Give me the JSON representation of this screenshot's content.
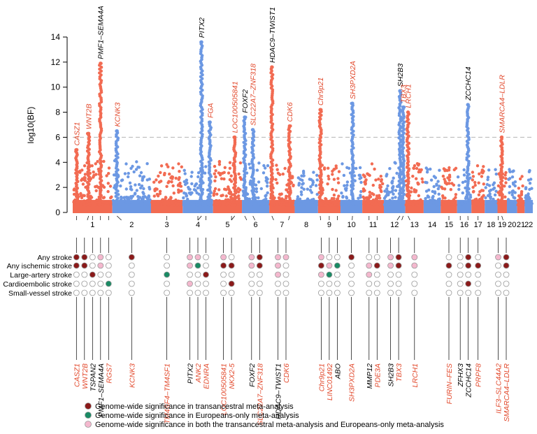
{
  "colors": {
    "odd_chr": "#F26B52",
    "even_chr": "#6C98E3",
    "threshold": "#BDBDBD",
    "novel_gene": "#E2492C",
    "known_gene": "#000000",
    "transancestral": "#8B1A1A",
    "europeans_only": "#1A8A64",
    "both": "#F4B8CE",
    "empty": "#FFFFFF"
  },
  "chart_data": {
    "type": "scatter",
    "subtype": "manhattan",
    "ylabel": "log10(BF)",
    "ylim": [
      0,
      14
    ],
    "yticks": [
      0,
      2,
      4,
      6,
      8,
      10,
      12,
      14
    ],
    "threshold": 6,
    "threshold_style": "dashed",
    "chromosomes": [
      "1",
      "2",
      "3",
      "4",
      "5",
      "6",
      "7",
      "8",
      "9",
      "10",
      "11",
      "12",
      "13",
      "14",
      "15",
      "16",
      "17",
      "18",
      "19",
      "20",
      "21",
      "22"
    ],
    "peaks": [
      {
        "chr": "1",
        "pos": 0.1,
        "top": 5.0,
        "label": "CASZ1",
        "novel": true
      },
      {
        "chr": "1",
        "pos": 0.4,
        "top": 6.3,
        "label": "WNT2B",
        "novel": true
      },
      {
        "chr": "1",
        "pos": 0.7,
        "top": 11.9,
        "label": "PMF1–SEMA4A",
        "novel": false
      },
      {
        "chr": "2",
        "pos": 0.12,
        "top": 6.5,
        "label": "KCNK3",
        "novel": true
      },
      {
        "chr": "4",
        "pos": 0.62,
        "top": 13.6,
        "label": "PITX2",
        "novel": false
      },
      {
        "chr": "4",
        "pos": 0.9,
        "top": 7.2,
        "label": "FGA",
        "novel": true
      },
      {
        "chr": "5",
        "pos": 0.75,
        "top": 6.0,
        "label": "LOC100505841",
        "novel": true
      },
      {
        "chr": "6",
        "pos": 0.1,
        "top": 7.6,
        "label": "FOXF2",
        "novel": false
      },
      {
        "chr": "6",
        "pos": 0.4,
        "top": 6.6,
        "label": "SLC22A7–ZNF318",
        "novel": true
      },
      {
        "chr": "7",
        "pos": 0.1,
        "top": 11.6,
        "label": "HDAC9–TWIST1",
        "novel": false
      },
      {
        "chr": "7",
        "pos": 0.8,
        "top": 6.9,
        "label": "CDK6",
        "novel": true
      },
      {
        "chr": "9",
        "pos": 0.1,
        "top": 8.2,
        "label": "Chr9p21",
        "novel": true
      },
      {
        "chr": "10",
        "pos": 0.55,
        "top": 8.7,
        "label": "SH3PXD2A",
        "novel": true
      },
      {
        "chr": "12",
        "pos": 0.75,
        "top": 9.7,
        "label": "SH2B3",
        "novel": false
      },
      {
        "chr": "12",
        "pos": 0.9,
        "top": 8.4,
        "label": "TBX3",
        "novel": true
      },
      {
        "chr": "13",
        "pos": 0.15,
        "top": 8.0,
        "label": "LRCH1",
        "novel": true
      },
      {
        "chr": "16",
        "pos": 0.75,
        "top": 8.6,
        "label": "ZCCHC14",
        "novel": false
      },
      {
        "chr": "19",
        "pos": 0.45,
        "top": 6.0,
        "label": "SMARCA4–LDLR",
        "novel": true
      }
    ],
    "background_max": [
      4.1,
      4.2,
      3.9,
      4.0,
      4.3,
      4.2,
      3.8,
      3.9,
      3.8,
      4.0,
      3.9,
      4.0,
      3.9,
      3.7,
      3.6,
      3.8,
      3.9,
      3.7,
      3.6,
      3.5,
      3.3,
      3.4
    ],
    "matrix_rows": [
      "Any stroke",
      "Any ischemic stroke",
      "Large-artery stroke",
      "Cardioembolic stroke",
      "Small-vessel stroke"
    ],
    "loci": [
      {
        "label": "CASZ1",
        "chr": "1",
        "novel": true,
        "status": [
          "T",
          "T",
          "",
          "",
          ""
        ]
      },
      {
        "label": "WNT2B",
        "chr": "1",
        "novel": true,
        "status": [
          "T",
          "T",
          "",
          "",
          ""
        ]
      },
      {
        "label": "TSPAN2",
        "chr": "1",
        "novel": false,
        "status": [
          "",
          "",
          "T",
          "",
          ""
        ]
      },
      {
        "label": "PMF1–SEMA4A",
        "chr": "1",
        "novel": false,
        "status": [
          "B",
          "B",
          "",
          "",
          ""
        ]
      },
      {
        "label": "RGS7",
        "chr": "1",
        "novel": true,
        "status": [
          "",
          "",
          "",
          "E",
          ""
        ]
      },
      {
        "label": "KCNK3",
        "chr": "2",
        "novel": true,
        "status": [
          "T",
          "",
          "",
          "",
          ""
        ]
      },
      {
        "label": "TM4SF4–TM4SF1",
        "chr": "3",
        "novel": true,
        "status": [
          "",
          "",
          "E",
          "",
          ""
        ]
      },
      {
        "label": "PITX2",
        "chr": "4",
        "novel": false,
        "status": [
          "B",
          "B",
          "",
          "B",
          ""
        ]
      },
      {
        "label": "ANK2",
        "chr": "4",
        "novel": true,
        "status": [
          "B",
          "E",
          "",
          "",
          ""
        ]
      },
      {
        "label": "EDNRA",
        "chr": "4",
        "novel": true,
        "status": [
          "",
          "",
          "T",
          "",
          ""
        ]
      },
      {
        "label": "LOC100505841",
        "chr": "5",
        "novel": true,
        "status": [
          "B",
          "T",
          "",
          "",
          ""
        ]
      },
      {
        "label": "NKX2-5",
        "chr": "5",
        "novel": true,
        "status": [
          "",
          "T",
          "",
          "T",
          ""
        ]
      },
      {
        "label": "FOXF2",
        "chr": "6",
        "novel": false,
        "status": [
          "B",
          "B",
          "",
          "",
          ""
        ]
      },
      {
        "label": "SLC22A7–ZNF318",
        "chr": "6",
        "novel": true,
        "status": [
          "T",
          "T",
          "",
          "",
          ""
        ]
      },
      {
        "label": "HDAC9–TWIST1",
        "chr": "7",
        "novel": false,
        "status": [
          "B",
          "B",
          "B",
          "",
          ""
        ]
      },
      {
        "label": "CDK6",
        "chr": "7",
        "novel": true,
        "status": [
          "B",
          "",
          "",
          "",
          ""
        ]
      },
      {
        "label": "Chr9p21",
        "chr": "9",
        "novel": true,
        "status": [
          "B",
          "T",
          "B",
          "",
          ""
        ]
      },
      {
        "label": "LINC01492",
        "chr": "9",
        "novel": true,
        "status": [
          "",
          "B",
          "E",
          "",
          ""
        ]
      },
      {
        "label": "ABO",
        "chr": "9",
        "novel": false,
        "status": [
          "",
          "E",
          "",
          "",
          ""
        ]
      },
      {
        "label": "SH3PXD2A",
        "chr": "10",
        "novel": true,
        "status": [
          "T",
          "",
          "",
          "",
          ""
        ]
      },
      {
        "label": "MMP12",
        "chr": "11",
        "novel": false,
        "status": [
          "",
          "B",
          "B",
          "",
          ""
        ]
      },
      {
        "label": "PDE3A",
        "chr": "11",
        "novel": true,
        "status": [
          "",
          "T",
          "",
          "",
          ""
        ]
      },
      {
        "label": "SH2B3",
        "chr": "12",
        "novel": false,
        "status": [
          "B",
          "B",
          "",
          "",
          ""
        ]
      },
      {
        "label": "TBX3",
        "chr": "12",
        "novel": true,
        "status": [
          "T",
          "T",
          "",
          "",
          ""
        ]
      },
      {
        "label": "LRCH1",
        "chr": "13",
        "novel": true,
        "status": [
          "B",
          "B",
          "",
          "",
          ""
        ]
      },
      {
        "label": "FURIN–FES",
        "chr": "15",
        "novel": true,
        "status": [
          "",
          "T",
          "",
          "",
          ""
        ]
      },
      {
        "label": "ZFHX3",
        "chr": "16",
        "novel": false,
        "status": [
          "",
          "",
          "",
          "",
          ""
        ]
      },
      {
        "label": "ZCCHC14",
        "chr": "16",
        "novel": false,
        "status": [
          "T",
          "T",
          "",
          "T",
          ""
        ]
      },
      {
        "label": "PRPF8",
        "chr": "17",
        "novel": true,
        "status": [
          "",
          "T",
          "",
          "",
          ""
        ]
      },
      {
        "label": "ILF3–SLC44A2",
        "chr": "19",
        "novel": true,
        "status": [
          "B",
          "",
          "",
          "",
          ""
        ]
      },
      {
        "label": "SMARCA4–LDLR",
        "chr": "19",
        "novel": true,
        "status": [
          "T",
          "T",
          "",
          "",
          ""
        ]
      }
    ],
    "legend": [
      {
        "key": "T",
        "text": "Genome-wide significance in transancestral meta-analysis"
      },
      {
        "key": "E",
        "text": "Genome-wide significance in Europeans-only meta-analysis"
      },
      {
        "key": "B",
        "text": "Genome-wide significance in both the transancestral meta-analysis and Europeans-only meta-analysis"
      }
    ]
  }
}
